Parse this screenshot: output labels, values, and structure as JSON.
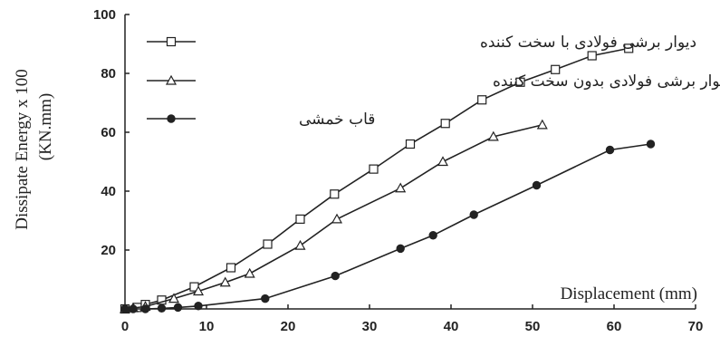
{
  "chart_data": {
    "type": "line",
    "xlabel": "Displacement (mm)",
    "ylabel": "Dissipate Energy x 100",
    "ylabel_unit": "(KN.mm)",
    "xlim": [
      0,
      70
    ],
    "ylim": [
      0,
      100
    ],
    "xticks": [
      0,
      10,
      20,
      30,
      40,
      50,
      60,
      70
    ],
    "yticks": [
      20,
      40,
      60,
      80,
      100
    ],
    "grid": false,
    "legend_position": "top-left",
    "series": [
      {
        "name": "دیوار برشی فولادی با سخت کننده",
        "marker": "square",
        "color": "#222222",
        "x": [
          0,
          1.5,
          2.5,
          4.5,
          8.5,
          13,
          17.5,
          21.5,
          25.7,
          30.5,
          35,
          39.3,
          43.8,
          48.5,
          52.8,
          57.3,
          61.8
        ],
        "y": [
          0,
          0.5,
          1.5,
          3,
          7.5,
          14,
          22,
          30.5,
          39,
          47.5,
          56,
          63,
          71,
          77,
          81.3,
          86,
          88.5
        ]
      },
      {
        "name": "دیوار برشی فولادی بدون سخت کننده",
        "marker": "triangle",
        "color": "#222222",
        "x": [
          0,
          1,
          2.5,
          6,
          9,
          12.3,
          15.3,
          21.5,
          26,
          33.8,
          39,
          45.2,
          51.2
        ],
        "y": [
          0,
          0.3,
          0.8,
          3.5,
          6,
          9,
          12,
          21.5,
          30.5,
          41,
          50,
          58.5,
          62.5
        ]
      },
      {
        "name": "قاب خمشی",
        "marker": "circle",
        "color": "#222222",
        "x": [
          0,
          1,
          2.5,
          4.5,
          6.5,
          9,
          17.2,
          25.8,
          33.8,
          37.8,
          42.8,
          50.5,
          59.5,
          64.5
        ],
        "y": [
          0,
          0,
          0,
          0.2,
          0.5,
          1,
          3.5,
          11.2,
          20.5,
          25,
          32,
          42,
          54,
          56
        ]
      }
    ]
  }
}
